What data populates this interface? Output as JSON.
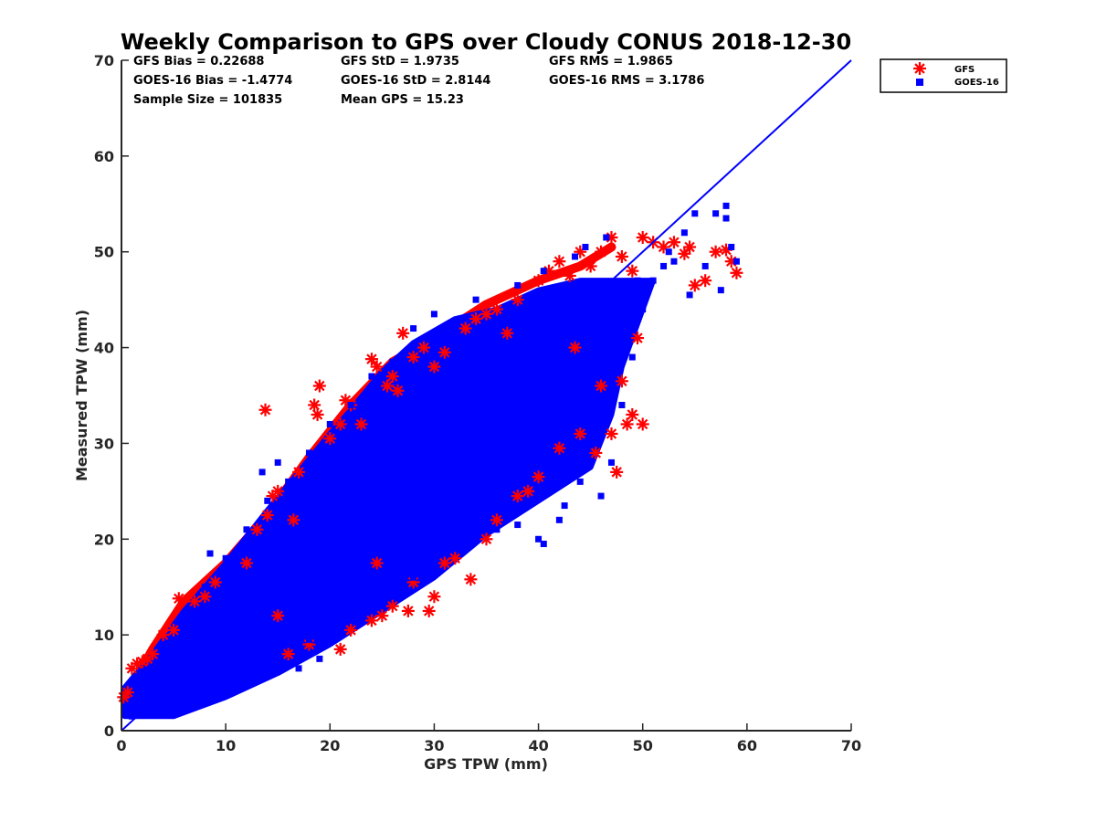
{
  "chart_data": {
    "type": "scatter",
    "title": "Weekly Comparison to GPS over Cloudy CONUS 2018-12-30",
    "xlabel": "GPS TPW (mm)",
    "ylabel": "Measured TPW (mm)",
    "xlim": [
      0,
      70
    ],
    "ylim": [
      0,
      70
    ],
    "xticks": [
      "0",
      "10",
      "20",
      "30",
      "40",
      "50",
      "60",
      "70"
    ],
    "yticks": [
      "0",
      "10",
      "20",
      "30",
      "40",
      "50",
      "60",
      "70"
    ],
    "grid": false,
    "legend_position": "outside top-right",
    "stats": [
      [
        "GFS Bias = 0.22688",
        "GFS StD = 1.9735",
        "GFS RMS = 1.9865"
      ],
      [
        "GOES-16 Bias = -1.4774",
        "GOES-16 StD = 2.8144",
        "GOES-16 RMS = 3.1786"
      ],
      [
        "Sample Size = 101835",
        "Mean GPS = 15.23"
      ]
    ],
    "reference_line": {
      "x": [
        0,
        70
      ],
      "y": [
        0,
        70
      ],
      "color": "#0000ff"
    },
    "series": [
      {
        "name": "GFS",
        "marker": "asterisk",
        "color": "#ff0000",
        "points": [
          [
            0.2,
            3.5
          ],
          [
            0.6,
            4.0
          ],
          [
            1.0,
            6.5
          ],
          [
            1.5,
            7.0
          ],
          [
            2.0,
            7.2
          ],
          [
            2.5,
            7.5
          ],
          [
            3.0,
            8.0
          ],
          [
            4.0,
            10.0
          ],
          [
            5.0,
            10.5
          ],
          [
            5.5,
            13.8
          ],
          [
            7.0,
            13.5
          ],
          [
            8.0,
            14.0
          ],
          [
            9.0,
            15.5
          ],
          [
            12.0,
            17.5
          ],
          [
            13.0,
            21.0
          ],
          [
            13.8,
            33.5
          ],
          [
            14.0,
            22.5
          ],
          [
            14.5,
            24.5
          ],
          [
            15.0,
            25.0
          ],
          [
            16.5,
            22.0
          ],
          [
            17.0,
            27.0
          ],
          [
            18.5,
            34.0
          ],
          [
            18.8,
            33.0
          ],
          [
            19.0,
            36.0
          ],
          [
            20.0,
            30.5
          ],
          [
            21.0,
            32.0
          ],
          [
            21.5,
            34.5
          ],
          [
            22.0,
            34.0
          ],
          [
            23.0,
            32.0
          ],
          [
            24.0,
            38.8
          ],
          [
            24.5,
            38.0
          ],
          [
            25.5,
            36.0
          ],
          [
            26.0,
            37.0
          ],
          [
            26.5,
            35.5
          ],
          [
            28.0,
            39.0
          ],
          [
            29.0,
            40.0
          ],
          [
            30.0,
            38.0
          ],
          [
            31.0,
            39.5
          ],
          [
            33.0,
            42.0
          ],
          [
            35.0,
            43.5
          ],
          [
            36.0,
            44.0
          ],
          [
            38.0,
            45.0
          ],
          [
            40.0,
            47.0
          ],
          [
            41.0,
            48.0
          ],
          [
            42.0,
            49.0
          ],
          [
            43.0,
            47.5
          ],
          [
            44.0,
            50.0
          ],
          [
            45.0,
            48.5
          ],
          [
            46.0,
            50.0
          ],
          [
            47.0,
            51.5
          ],
          [
            48.0,
            49.5
          ],
          [
            49.0,
            48.0
          ],
          [
            50.0,
            51.5
          ],
          [
            51.0,
            51.0
          ],
          [
            52.0,
            50.5
          ],
          [
            53.0,
            51.0
          ],
          [
            54.0,
            49.8
          ],
          [
            54.5,
            50.5
          ],
          [
            55.0,
            46.5
          ],
          [
            56.0,
            47.0
          ],
          [
            57.0,
            50.0
          ],
          [
            58.0,
            50.2
          ],
          [
            58.5,
            49.0
          ],
          [
            59.0,
            47.8
          ],
          [
            47.5,
            27.0
          ],
          [
            48.5,
            32.0
          ],
          [
            49.0,
            33.0
          ],
          [
            50.0,
            32.0
          ],
          [
            49.5,
            41.0
          ],
          [
            48.0,
            36.5
          ],
          [
            47.0,
            31.0
          ],
          [
            45.5,
            29.0
          ],
          [
            42.0,
            29.5
          ],
          [
            40.0,
            26.5
          ],
          [
            39.0,
            25.0
          ],
          [
            38.0,
            24.5
          ],
          [
            35.0,
            20.0
          ],
          [
            32.0,
            18.0
          ],
          [
            33.5,
            15.8
          ],
          [
            30.0,
            14.0
          ],
          [
            28.0,
            15.5
          ],
          [
            27.5,
            12.5
          ],
          [
            25.0,
            12.0
          ],
          [
            24.0,
            11.5
          ],
          [
            22.0,
            10.5
          ],
          [
            21.0,
            8.5
          ],
          [
            18.0,
            9.0
          ],
          [
            16.0,
            8.0
          ],
          [
            15.0,
            12.0
          ],
          [
            29.5,
            12.5
          ],
          [
            26.0,
            13.0
          ],
          [
            24.5,
            17.5
          ],
          [
            31.0,
            17.5
          ],
          [
            36.0,
            22.0
          ],
          [
            44.0,
            31.0
          ],
          [
            46.0,
            36.0
          ],
          [
            43.5,
            40.0
          ],
          [
            37.0,
            41.5
          ],
          [
            34.0,
            43.0
          ],
          [
            27.0,
            41.5
          ]
        ]
      },
      {
        "name": "GOES-16",
        "marker": "square",
        "color": "#0000ff",
        "points": [
          [
            0.5,
            2.0
          ],
          [
            1.0,
            1.5
          ],
          [
            2.0,
            2.0
          ],
          [
            3.0,
            1.8
          ],
          [
            4.0,
            2.5
          ],
          [
            5.0,
            3.0
          ],
          [
            6.0,
            3.5
          ],
          [
            8.0,
            4.0
          ],
          [
            8.5,
            18.5
          ],
          [
            10.0,
            5.5
          ],
          [
            12.0,
            6.5
          ],
          [
            13.5,
            27.0
          ],
          [
            14.0,
            8.0
          ],
          [
            15.0,
            28.0
          ],
          [
            16.0,
            9.0
          ],
          [
            18.0,
            9.5
          ],
          [
            19.0,
            29.0
          ],
          [
            20.0,
            11.0
          ],
          [
            22.0,
            12.0
          ],
          [
            24.0,
            13.0
          ],
          [
            26.0,
            14.5
          ],
          [
            28.0,
            16.0
          ],
          [
            30.0,
            18.0
          ],
          [
            32.0,
            19.5
          ],
          [
            34.0,
            20.0
          ],
          [
            36.0,
            21.0
          ],
          [
            38.0,
            21.5
          ],
          [
            40.0,
            20.0
          ],
          [
            40.5,
            19.5
          ],
          [
            42.0,
            22.0
          ],
          [
            42.5,
            23.5
          ],
          [
            44.0,
            26.0
          ],
          [
            46.0,
            24.5
          ],
          [
            47.0,
            28.0
          ],
          [
            48.0,
            34.0
          ],
          [
            49.0,
            39.0
          ],
          [
            50.0,
            44.0
          ],
          [
            50.5,
            46.0
          ],
          [
            51.0,
            47.0
          ],
          [
            52.0,
            48.5
          ],
          [
            53.0,
            49.0
          ],
          [
            54.0,
            52.0
          ],
          [
            54.5,
            45.5
          ],
          [
            55.0,
            54.0
          ],
          [
            56.0,
            48.5
          ],
          [
            57.0,
            54.0
          ],
          [
            57.5,
            46.0
          ],
          [
            58.0,
            54.8
          ],
          [
            58.0,
            53.5
          ],
          [
            58.5,
            50.5
          ],
          [
            59.0,
            49.0
          ],
          [
            46.5,
            51.5
          ],
          [
            44.5,
            50.5
          ],
          [
            43.5,
            49.5
          ],
          [
            40.5,
            48.0
          ],
          [
            38.0,
            46.5
          ],
          [
            34.0,
            45.0
          ],
          [
            30.0,
            43.5
          ],
          [
            28.0,
            42.0
          ],
          [
            26.0,
            38.5
          ],
          [
            24.0,
            37.0
          ],
          [
            22.0,
            34.0
          ],
          [
            20.0,
            32.0
          ],
          [
            18.0,
            29.0
          ],
          [
            16.0,
            26.0
          ],
          [
            14.0,
            24.0
          ],
          [
            12.0,
            21.0
          ],
          [
            10.0,
            18.0
          ],
          [
            8.0,
            15.0
          ],
          [
            6.0,
            12.0
          ],
          [
            4.0,
            9.0
          ],
          [
            2.0,
            6.0
          ],
          [
            45.0,
            33.0
          ],
          [
            46.0,
            40.5
          ],
          [
            48.0,
            44.0
          ],
          [
            47.5,
            45.5
          ],
          [
            49.5,
            47.0
          ],
          [
            52.5,
            50.0
          ],
          [
            40.0,
            37.5
          ],
          [
            35.0,
            34.0
          ],
          [
            30.0,
            30.0
          ],
          [
            25.0,
            25.0
          ],
          [
            20.0,
            20.0
          ],
          [
            15.0,
            15.0
          ],
          [
            10.0,
            10.0
          ],
          [
            5.0,
            5.0
          ],
          [
            33.0,
            20.5
          ],
          [
            36.0,
            25.0
          ],
          [
            42.0,
            32.0
          ],
          [
            44.0,
            39.0
          ],
          [
            45.5,
            42.0
          ],
          [
            28.0,
            18.0
          ],
          [
            24.0,
            16.0
          ],
          [
            22.0,
            19.5
          ],
          [
            19.0,
            7.5
          ],
          [
            17.0,
            6.5
          ]
        ]
      }
    ],
    "dense_band": {
      "series": [
        "GFS",
        "GOES-16"
      ],
      "lower_edge": [
        [
          0.3,
          1.5
        ],
        [
          5,
          1.5
        ],
        [
          10,
          3.5
        ],
        [
          15,
          6.0
        ],
        [
          20,
          9.0
        ],
        [
          25,
          12.5
        ],
        [
          30,
          16.0
        ],
        [
          35,
          20.5
        ],
        [
          40,
          24.0
        ],
        [
          45,
          27.5
        ],
        [
          47,
          33.0
        ],
        [
          48,
          38.0
        ],
        [
          50,
          44.0
        ],
        [
          51,
          47.0
        ]
      ],
      "upper_edge": [
        [
          51,
          47.0
        ],
        [
          48,
          47.0
        ],
        [
          44,
          47.0
        ],
        [
          40,
          46.0
        ],
        [
          36,
          44.0
        ],
        [
          32,
          43.0
        ],
        [
          28,
          40.5
        ],
        [
          25,
          37.5
        ],
        [
          22,
          33.5
        ],
        [
          20,
          31.0
        ],
        [
          17,
          27.0
        ],
        [
          14,
          23.0
        ],
        [
          10,
          17.5
        ],
        [
          6,
          12.5
        ],
        [
          3,
          8.0
        ],
        [
          0.3,
          4.5
        ]
      ],
      "gfs_edge": [
        [
          0.3,
          3.3
        ],
        [
          3,
          8.5
        ],
        [
          6,
          13.5
        ],
        [
          10,
          17.5
        ],
        [
          14,
          22.5
        ],
        [
          18,
          28.5
        ],
        [
          22,
          34.0
        ],
        [
          26,
          38.5
        ],
        [
          30,
          41.0
        ],
        [
          35,
          44.5
        ],
        [
          40,
          47.0
        ],
        [
          44,
          48.5
        ],
        [
          47,
          50.5
        ]
      ]
    }
  }
}
